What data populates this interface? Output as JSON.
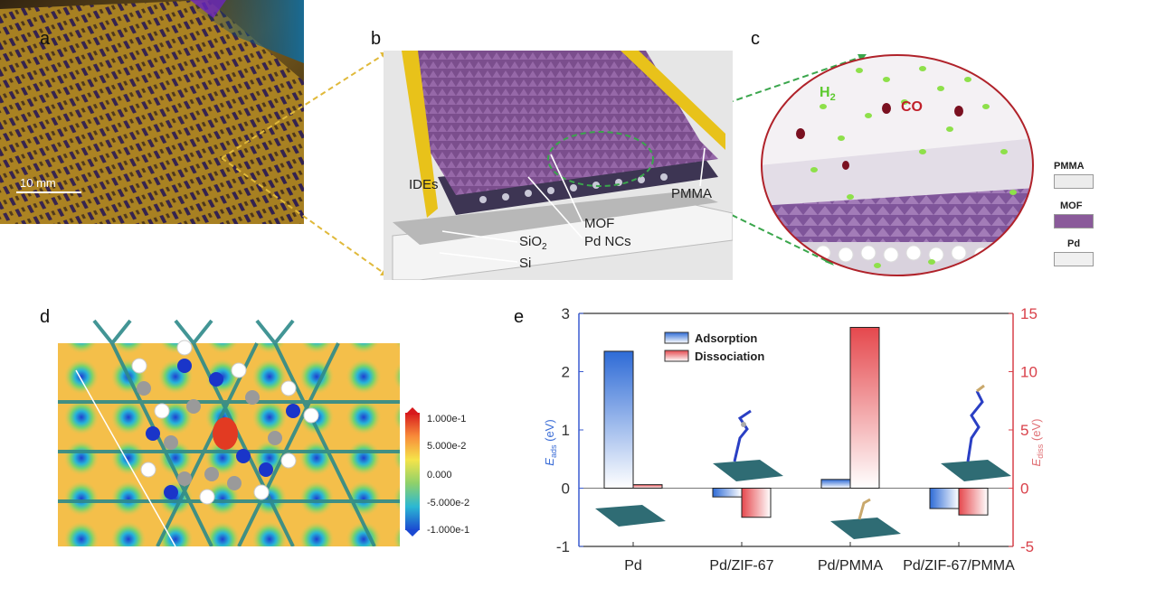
{
  "panels": {
    "a": {
      "letter": "a",
      "scale_bar": "10 mm"
    },
    "b": {
      "letter": "b",
      "labels": {
        "ides": "IDEs",
        "pmma": "PMMA",
        "mof": "MOF",
        "pdncs": "Pd NCs",
        "sio2": "SiO",
        "sio2_sub": "2",
        "si": "Si"
      }
    },
    "c": {
      "letter": "c",
      "h2": "H",
      "h2_sub": "2",
      "co": "CO",
      "legend": [
        {
          "label": "PMMA",
          "color": "#ececec"
        },
        {
          "label": "MOF",
          "color": "#8a5a9a"
        },
        {
          "label": "Pd",
          "color": "#f0f0f0"
        }
      ]
    },
    "d": {
      "letter": "d",
      "colorbar": [
        "1.000e-1",
        "5.000e-2",
        "0.000",
        "-5.000e-2",
        "-1.000e-1"
      ]
    },
    "e": {
      "letter": "e"
    }
  },
  "colors": {
    "adsorption": "#2e6bd6",
    "dissociation": "#e5484d",
    "ides_gold": "#e8c21a",
    "mof_purple": "#7b4e8d",
    "arrow": "#3aa64c",
    "arrow_gold": "#e0b93a"
  },
  "chart_data": {
    "type": "bar",
    "categories": [
      "Pd",
      "Pd/ZIF-67",
      "Pd/PMMA",
      "Pd/ZIF-67/PMMA"
    ],
    "series": [
      {
        "name": "Adsorption",
        "axis": "left",
        "values": [
          2.35,
          -0.15,
          0.15,
          -0.35
        ]
      },
      {
        "name": "Dissociation",
        "axis": "right",
        "values": [
          0.3,
          -2.5,
          13.8,
          -2.3
        ]
      }
    ],
    "ylabel_left": "E",
    "ylabel_left_sub": "ads",
    "ylabel_left_unit": " (eV)",
    "ylabel_right": "E",
    "ylabel_right_sub": "diss",
    "ylabel_right_unit": " (eV)",
    "ylim_left": [
      -1,
      3
    ],
    "ylim_right": [
      -5,
      15
    ],
    "yticks_left": [
      "-1",
      "0",
      "1",
      "2",
      "3"
    ],
    "yticks_right": [
      "-5",
      "0",
      "5",
      "10",
      "15"
    ],
    "legend_position": "top-left"
  }
}
